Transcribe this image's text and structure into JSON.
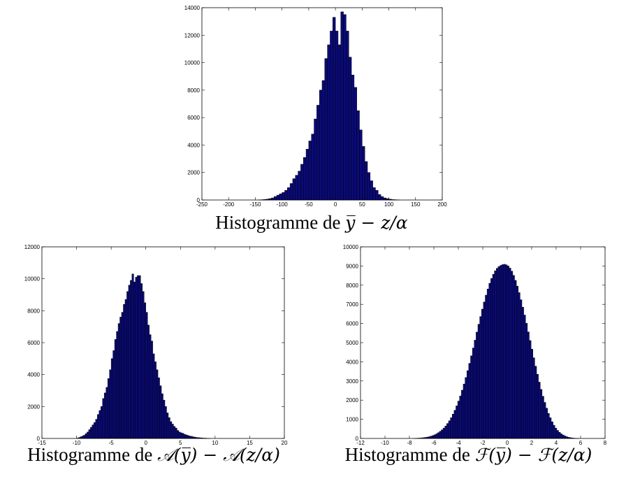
{
  "colors": {
    "bar_fill": "#0a0a7a",
    "bar_edge": "#000000",
    "axis": "#000000"
  },
  "chart_data": [
    {
      "type": "bar",
      "title": "Histogramme de y̅ − z/α",
      "caption": {
        "prefix": "Histogramme de",
        "expr": "y̅ − z/α"
      },
      "xlim": [
        -250,
        200
      ],
      "ylim": [
        0,
        14000
      ],
      "xticks": [
        -250,
        -200,
        -150,
        -100,
        -50,
        0,
        50,
        100,
        150,
        200
      ],
      "yticks": [
        0,
        2000,
        4000,
        6000,
        8000,
        10000,
        12000,
        14000
      ],
      "bin_start": -205,
      "bin_width": 5,
      "values": [
        0,
        0,
        0,
        0,
        0,
        0,
        0,
        0,
        0,
        0,
        0,
        0,
        10,
        20,
        40,
        60,
        100,
        150,
        250,
        350,
        450,
        550,
        700,
        900,
        1200,
        1550,
        1800,
        2100,
        2600,
        3100,
        3700,
        4300,
        4800,
        5900,
        6900,
        8000,
        8700,
        10300,
        11300,
        12300,
        13300,
        12300,
        11300,
        13700,
        13500,
        12300,
        10400,
        9100,
        8200,
        6500,
        5100,
        3900,
        2800,
        2000,
        1400,
        900,
        700,
        400,
        250,
        150,
        100,
        60,
        30,
        20,
        10,
        0,
        0,
        0,
        0,
        0,
        0,
        0,
        0,
        0,
        0,
        0,
        0,
        0,
        0,
        0,
        0,
        0
      ]
    },
    {
      "type": "bar",
      "title": "Histogramme de 𝒜(y̅) − 𝒜(z/α)",
      "caption": {
        "prefix": "Histogramme de",
        "expr": "𝒜(y̅) − 𝒜(z/α)"
      },
      "xlim": [
        -15,
        20
      ],
      "ylim": [
        0,
        12000
      ],
      "xticks": [
        -15,
        -10,
        -5,
        0,
        5,
        10,
        15,
        20
      ],
      "yticks": [
        0,
        2000,
        4000,
        6000,
        8000,
        10000,
        12000
      ],
      "bin_start": -12,
      "bin_width": 0.25,
      "values": [
        0,
        0,
        0,
        0,
        0,
        0,
        0,
        0,
        20,
        50,
        100,
        150,
        200,
        300,
        400,
        550,
        700,
        850,
        1000,
        1200,
        1500,
        1750,
        2000,
        2500,
        2850,
        3200,
        3750,
        4300,
        5000,
        5500,
        6200,
        6700,
        7200,
        7600,
        7900,
        8400,
        8700,
        9200,
        9600,
        9900,
        10300,
        9800,
        10100,
        10200,
        10200,
        9700,
        9200,
        8500,
        7900,
        7100,
        6500,
        6100,
        5300,
        4800,
        4300,
        3800,
        3300,
        2800,
        2400,
        2000,
        1600,
        1300,
        1050,
        900,
        750,
        650,
        500,
        400,
        350,
        320,
        250,
        220,
        180,
        150,
        130,
        100,
        80,
        60,
        50,
        40,
        30,
        20,
        20,
        10,
        10,
        0,
        0,
        0,
        0,
        0,
        0,
        0,
        0,
        0,
        0,
        0,
        0,
        0,
        0,
        0,
        0,
        0,
        0,
        0,
        0,
        0,
        0,
        0,
        0,
        0,
        0,
        0,
        0,
        0,
        0,
        0,
        0,
        0,
        0,
        0,
        0,
        0,
        0,
        0,
        0,
        0,
        0
      ]
    },
    {
      "type": "bar",
      "title": "Histogramme de ℱ(y̅) − ℱ(z/α)",
      "caption": {
        "prefix": "Histogramme de",
        "expr": "ℱ(y̅) − ℱ(z/α)"
      },
      "xlim": [
        -12,
        8
      ],
      "ylim": [
        0,
        10000
      ],
      "xticks": [
        -12,
        -10,
        -8,
        -6,
        -4,
        -2,
        0,
        2,
        4,
        6,
        8
      ],
      "yticks": [
        0,
        1000,
        2000,
        3000,
        4000,
        5000,
        6000,
        7000,
        8000,
        9000,
        10000
      ],
      "bin_start": -9,
      "bin_width": 0.15,
      "values": [
        0,
        0,
        0,
        0,
        0,
        0,
        0,
        0,
        0,
        5,
        10,
        15,
        20,
        30,
        40,
        55,
        70,
        90,
        120,
        150,
        190,
        240,
        300,
        370,
        450,
        540,
        650,
        780,
        920,
        1080,
        1270,
        1470,
        1700,
        1950,
        2220,
        2520,
        2840,
        3180,
        3540,
        3920,
        4310,
        4720,
        5130,
        5550,
        5960,
        6360,
        6750,
        7120,
        7480,
        7800,
        8100,
        8350,
        8570,
        8750,
        8880,
        8970,
        9030,
        9070,
        9090,
        9060,
        9000,
        8890,
        8730,
        8510,
        8250,
        7950,
        7610,
        7240,
        6850,
        6440,
        6010,
        5560,
        5110,
        4660,
        4210,
        3770,
        3350,
        2940,
        2560,
        2200,
        1880,
        1580,
        1310,
        1080,
        870,
        690,
        540,
        420,
        320,
        240,
        180,
        130,
        90,
        60,
        40,
        25,
        15,
        8,
        4,
        0,
        0,
        0,
        0,
        0,
        0
      ]
    }
  ]
}
